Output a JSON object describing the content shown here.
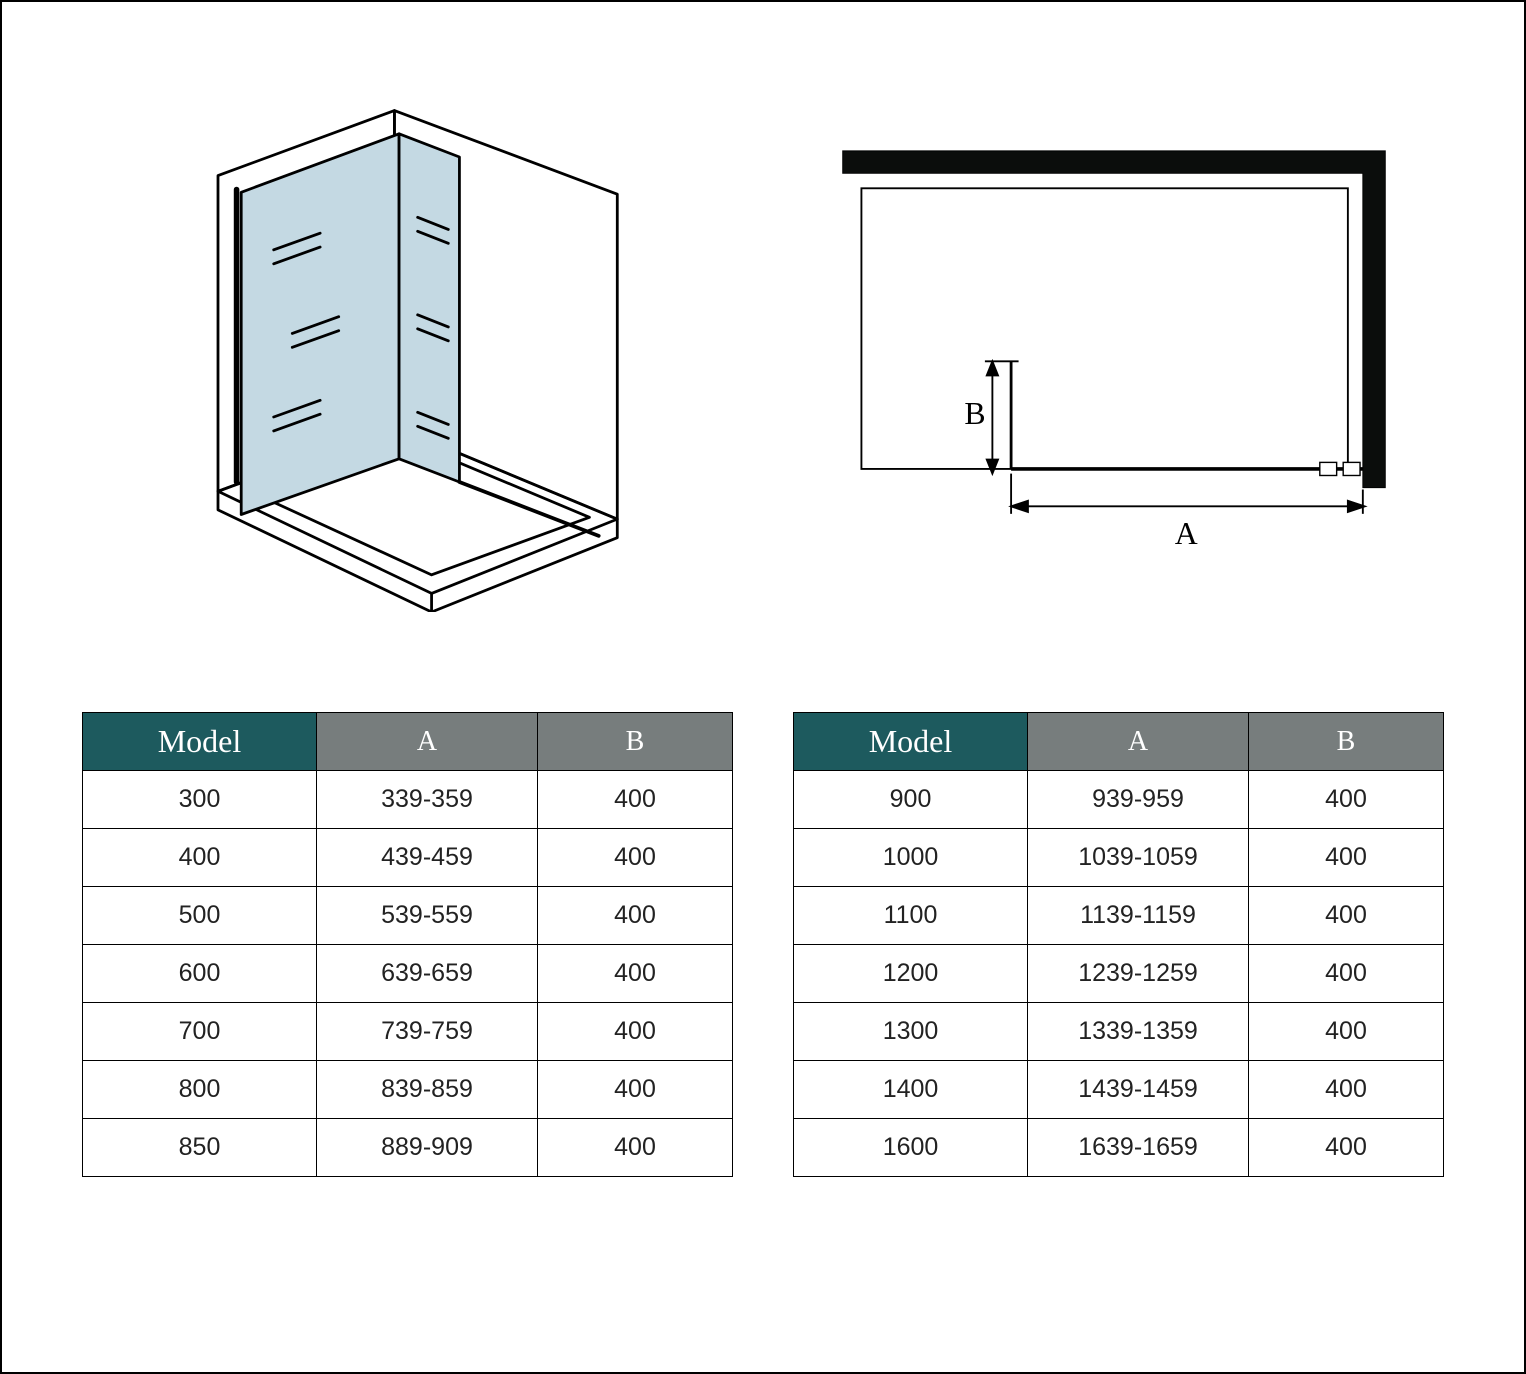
{
  "colors": {
    "header_model": "#1d5a5e",
    "header_ab": "#777d7d",
    "glass_fill": "#c4d9e3",
    "stroke": "#000000",
    "bg": "#ffffff"
  },
  "labels": {
    "dim_a": "A",
    "dim_b": "B"
  },
  "tables": {
    "left": {
      "headers": [
        "Model",
        "A",
        "B"
      ],
      "rows": [
        [
          "300",
          "339-359",
          "400"
        ],
        [
          "400",
          "439-459",
          "400"
        ],
        [
          "500",
          "539-559",
          "400"
        ],
        [
          "600",
          "639-659",
          "400"
        ],
        [
          "700",
          "739-759",
          "400"
        ],
        [
          "800",
          "839-859",
          "400"
        ],
        [
          "850",
          "889-909",
          "400"
        ]
      ]
    },
    "right": {
      "headers": [
        "Model",
        "A",
        "B"
      ],
      "rows": [
        [
          "900",
          "939-959",
          "400"
        ],
        [
          "1000",
          "1039-1059",
          "400"
        ],
        [
          "1100",
          "1139-1159",
          "400"
        ],
        [
          "1200",
          "1239-1259",
          "400"
        ],
        [
          "1300",
          "1339-1359",
          "400"
        ],
        [
          "1400",
          "1439-1459",
          "400"
        ],
        [
          "1600",
          "1639-1659",
          "400"
        ]
      ]
    }
  },
  "iso_diagram": {
    "glass_color": "#c4d9e3",
    "stroke_width": 3
  },
  "plan_diagram": {
    "wall_fill": "#0b0d0c",
    "wall_thickness": 24,
    "stroke_width": 2
  }
}
